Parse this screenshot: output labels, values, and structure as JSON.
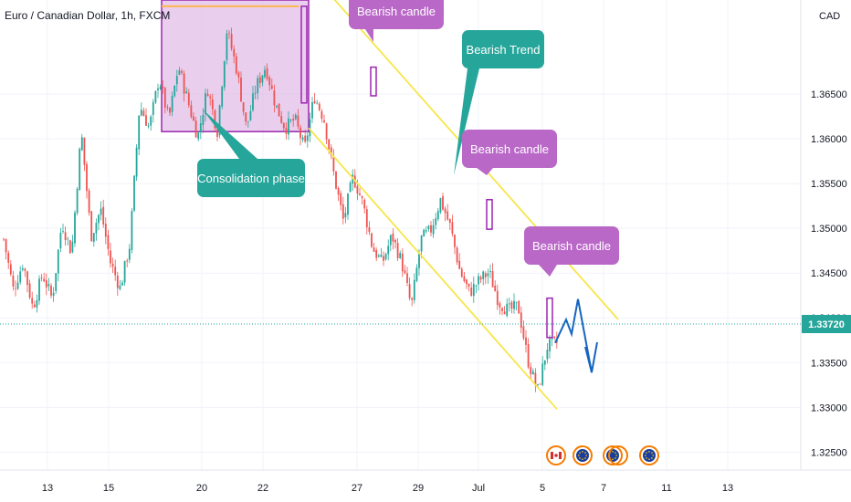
{
  "header": {
    "symbol_title": "Euro / Canadian Dollar, 1h, FXCM",
    "currency_label": "CAD"
  },
  "colors": {
    "up_candle": "#26a69a",
    "down_candle": "#ef5350",
    "channel_line": "#f7e64a",
    "consolidation_fill": "#e1bee7",
    "consolidation_border": "#9c27b0",
    "callout_purple": "#ba68c8",
    "callout_teal": "#26a69a",
    "projection_line": "#1565c0",
    "price_tag": "#26a69a"
  },
  "chart_data": {
    "type": "candlestick",
    "title": "Euro / Canadian Dollar, 1h, FXCM",
    "y_unit": "CAD",
    "ylim": [
      1.323,
      1.3755
    ],
    "y_ticks": [
      "1.32500",
      "1.33000",
      "1.33500",
      "1.34000",
      "1.34500",
      "1.35000",
      "1.35500",
      "1.36000",
      "1.36500"
    ],
    "x_ticks": [
      "13",
      "15",
      "20",
      "22",
      "27",
      "29",
      "Jul",
      "5",
      "7",
      "11",
      "13"
    ],
    "last_price": "1.33720",
    "grid": true,
    "price_path": [
      [
        "13",
        1.3488
      ],
      [
        "13",
        1.3431
      ],
      [
        "13",
        1.3462
      ],
      [
        "13",
        1.3411
      ],
      [
        "13",
        1.3449
      ],
      [
        "15",
        1.3421
      ],
      [
        "15",
        1.3507
      ],
      [
        "15",
        1.3472
      ],
      [
        "15",
        1.3608
      ],
      [
        "15",
        1.3491
      ],
      [
        "15",
        1.3521
      ],
      [
        "15",
        1.3462
      ],
      [
        "15",
        1.3433
      ],
      [
        "20",
        1.3482
      ],
      [
        "20",
        1.3638
      ],
      [
        "20",
        1.3612
      ],
      [
        "20",
        1.3668
      ],
      [
        "20",
        1.3621
      ],
      [
        "20",
        1.3681
      ],
      [
        "20",
        1.3641
      ],
      [
        "22",
        1.3602
      ],
      [
        "22",
        1.3657
      ],
      [
        "22",
        1.3608
      ],
      [
        "22",
        1.3722
      ],
      [
        "22",
        1.3678
      ],
      [
        "22",
        1.3612
      ],
      [
        "22",
        1.3658
      ],
      [
        "27",
        1.3681
      ],
      [
        "27",
        1.3638
      ],
      [
        "27",
        1.3612
      ],
      [
        "27",
        1.3622
      ],
      [
        "27",
        1.3588
      ],
      [
        "27",
        1.3648
      ],
      [
        "27",
        1.3622
      ],
      [
        "27",
        1.3561
      ],
      [
        "29",
        1.3508
      ],
      [
        "29",
        1.3558
      ],
      [
        "29",
        1.3528
      ],
      [
        "29",
        1.3478
      ],
      [
        "29",
        1.3461
      ],
      [
        "Jul",
        1.3492
      ],
      [
        "Jul",
        1.3462
      ],
      [
        "Jul",
        1.3412
      ],
      [
        "Jul",
        1.3488
      ],
      [
        "Jul",
        1.3498
      ],
      [
        "Jul",
        1.3532
      ],
      [
        "Jul",
        1.3502
      ],
      [
        "Jul",
        1.3452
      ],
      [
        "Jul",
        1.3428
      ],
      [
        "Jul",
        1.3442
      ],
      [
        "5",
        1.3451
      ],
      [
        "5",
        1.3418
      ],
      [
        "5",
        1.3408
      ],
      [
        "5",
        1.3413
      ],
      [
        "5",
        1.3353
      ],
      [
        "5",
        1.3318
      ],
      [
        "5",
        1.3368
      ],
      [
        "5",
        1.3372
      ]
    ],
    "channel": {
      "upper_line": [
        [
          "22",
          1.3788
        ],
        [
          "5",
          1.3381
        ]
      ],
      "lower_line": [
        [
          "22",
          1.3612
        ],
        [
          "5",
          1.3298
        ]
      ]
    },
    "consolidation_zone": {
      "from": "18",
      "to": "22",
      "price_high": 1.3755,
      "price_low": 1.3608,
      "top_trendline_price": 1.3748
    },
    "marked_candles": [
      {
        "at": "27",
        "high": 1.368,
        "low": 1.3648
      },
      {
        "at": "29",
        "high": 1.3532,
        "low": 1.3499
      },
      {
        "at": "5",
        "high": 1.3422,
        "low": 1.3378
      }
    ],
    "projection": [
      [
        "5",
        1.3372
      ],
      [
        "5",
        1.3398
      ],
      [
        "5",
        1.3382
      ],
      [
        "7",
        1.3421
      ],
      [
        "7",
        1.3339
      ]
    ],
    "annotations": [
      {
        "text": "Bearish candle"
      },
      {
        "text": "Bearish Trend"
      },
      {
        "text": "Bearish candle"
      },
      {
        "text": "Consolidation phase"
      },
      {
        "text": "Bearish candle"
      }
    ]
  },
  "events": [
    {
      "icon": "canada-flag-icon"
    },
    {
      "icon": "eu-flag-icon"
    },
    {
      "icon": "eu-flag-icon"
    },
    {
      "icon": "eu-flag-icon"
    }
  ]
}
